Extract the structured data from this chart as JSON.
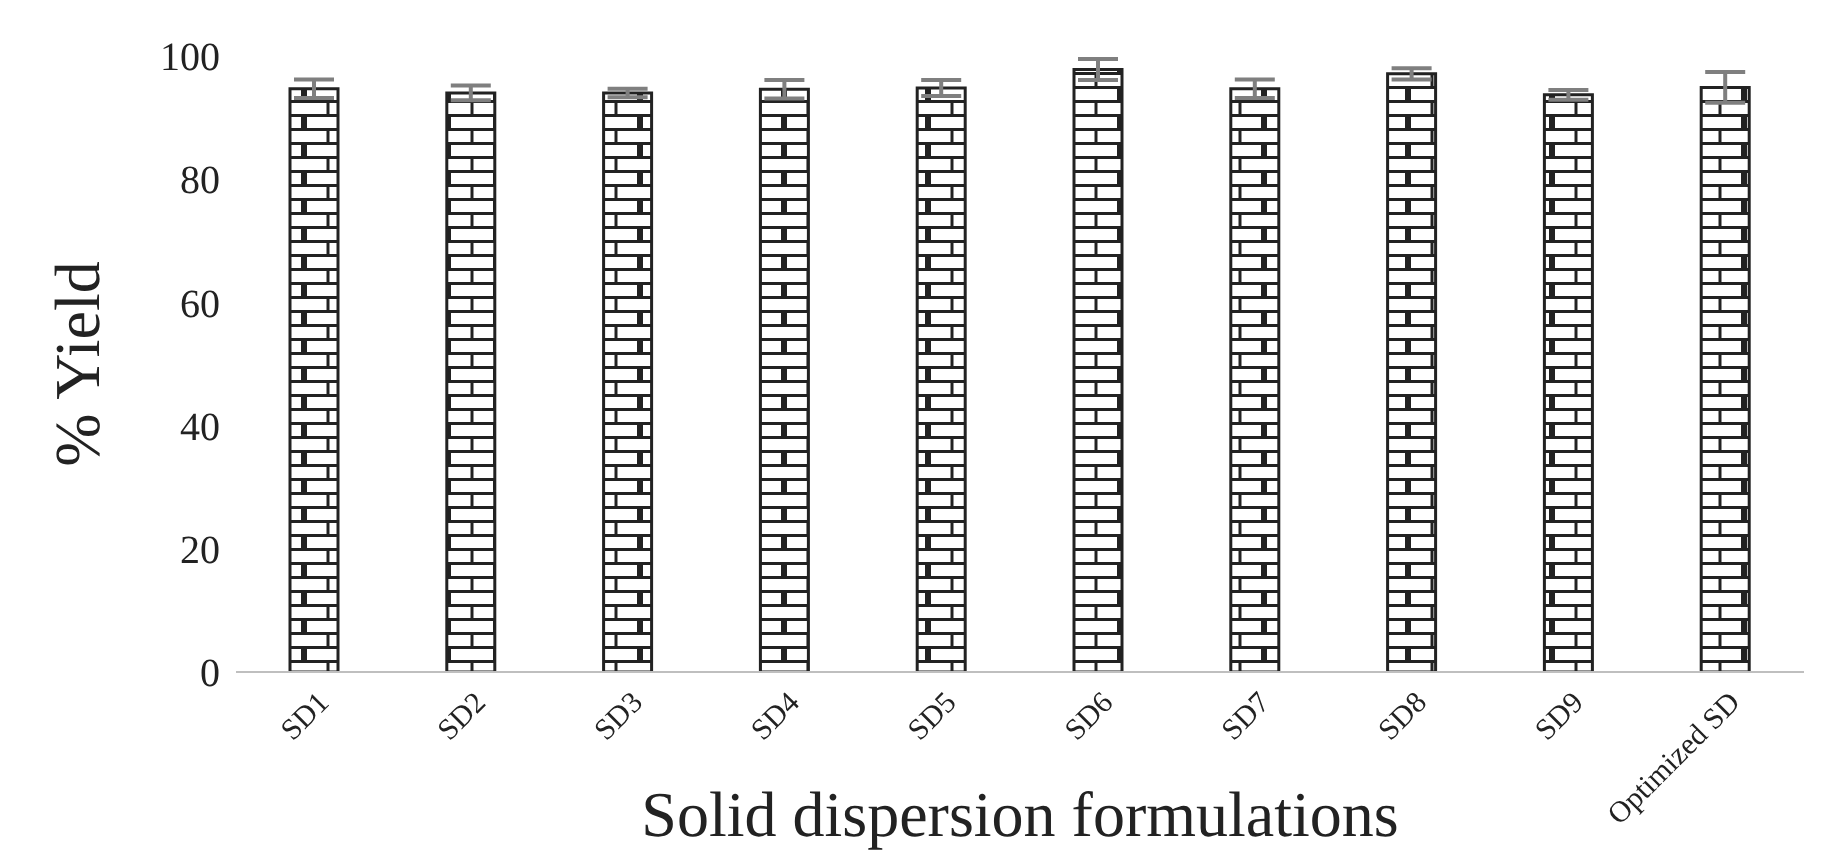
{
  "chart_data": {
    "type": "bar",
    "xlabel": "Solid dispersion formulations",
    "ylabel": "% Yield",
    "categories": [
      "SD1",
      "SD2",
      "SD3",
      "SD4",
      "SD5",
      "SD6",
      "SD7",
      "SD8",
      "SD9",
      "Optimized SD"
    ],
    "values": [
      94.7,
      94.0,
      94.0,
      94.6,
      94.8,
      97.8,
      94.7,
      97.1,
      93.7,
      94.9
    ],
    "errors": [
      1.5,
      1.2,
      0.7,
      1.5,
      1.3,
      1.7,
      1.5,
      0.9,
      0.8,
      2.5
    ],
    "color": "#222222",
    "ylim": [
      0,
      100
    ],
    "yticks": [
      0,
      20,
      40,
      60,
      80,
      100
    ],
    "grid": false
  }
}
